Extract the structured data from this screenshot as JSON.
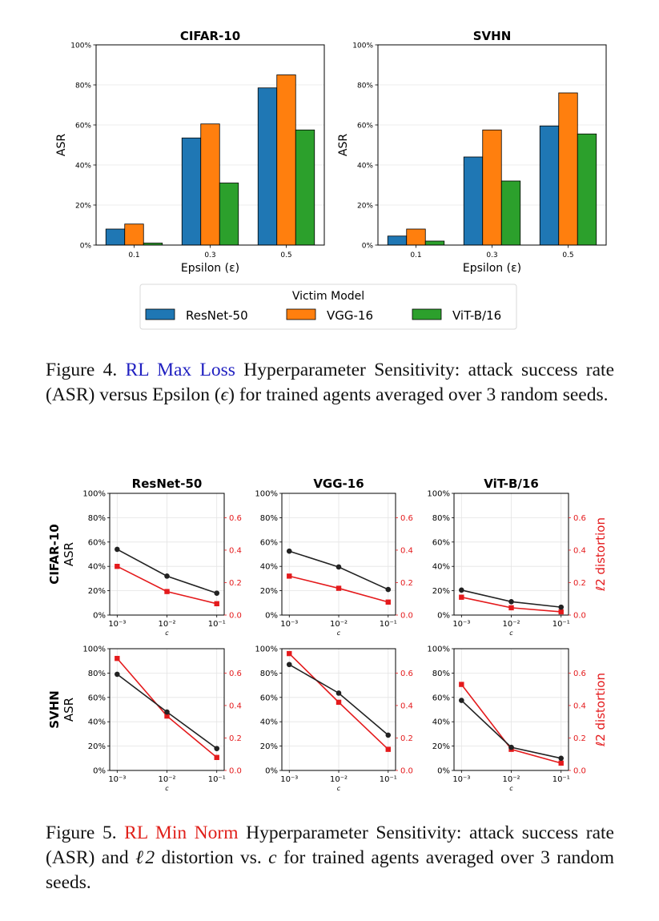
{
  "figure4": {
    "chart_data": [
      {
        "type": "bar",
        "title": "CIFAR-10",
        "xlabel": "Epsilon (ε)",
        "ylabel": "ASR",
        "categories": [
          "0.1",
          "0.3",
          "0.5"
        ],
        "ylim": [
          0,
          100
        ],
        "yticks": [
          "0%",
          "20%",
          "40%",
          "60%",
          "80%",
          "100%"
        ],
        "series": [
          {
            "name": "ResNet-50",
            "values": [
              8,
              53.5,
              78.5
            ]
          },
          {
            "name": "VGG-16",
            "values": [
              10.5,
              60.5,
              85
            ]
          },
          {
            "name": "ViT-B/16",
            "values": [
              1,
              31,
              57.5
            ]
          }
        ]
      },
      {
        "type": "bar",
        "title": "SVHN",
        "xlabel": "Epsilon (ε)",
        "ylabel": "ASR",
        "categories": [
          "0.1",
          "0.3",
          "0.5"
        ],
        "ylim": [
          0,
          100
        ],
        "yticks": [
          "0%",
          "20%",
          "40%",
          "60%",
          "80%",
          "100%"
        ],
        "series": [
          {
            "name": "ResNet-50",
            "values": [
              4.5,
              44,
              59.5
            ]
          },
          {
            "name": "VGG-16",
            "values": [
              8,
              57.5,
              76
            ]
          },
          {
            "name": "ViT-B/16",
            "values": [
              2,
              32,
              55.5
            ]
          }
        ]
      }
    ],
    "legend": {
      "title": "Victim Model",
      "items": [
        "ResNet-50",
        "VGG-16",
        "ViT-B/16"
      ]
    },
    "colors": [
      "#1f77b4",
      "#ff7f0e",
      "#2ca02c"
    ],
    "caption": {
      "label": "Figure 4.",
      "method": "RL Max Loss",
      "text_a": "Hyperparameter Sensitivity: attack suc-cess rate (ASR) versus Epsilon (",
      "epsilon": "ϵ",
      "text_b": ") for trained agents averaged over 3 random seeds."
    }
  },
  "figure5": {
    "col_titles": [
      "ResNet-50",
      "VGG-16",
      "ViT-B/16"
    ],
    "row_titles": [
      "CIFAR-10",
      "SVHN"
    ],
    "ylabel_left": "ASR",
    "ylabel_right": "ℓ2 distortion",
    "xlabel": "c",
    "xticks": [
      "10⁻³",
      "10⁻²",
      "10⁻¹"
    ],
    "asr_ticks": [
      "0%",
      "20%",
      "40%",
      "60%",
      "80%",
      "100%"
    ],
    "dist_ticks": [
      "0.0",
      "0.2",
      "0.4",
      "0.6"
    ],
    "asr_color": "#222222",
    "dist_color": "#e41a1c",
    "chart_data": [
      {
        "type": "line",
        "row": "CIFAR-10",
        "col": "ResNet-50",
        "x": [
          0.001,
          0.01,
          0.1
        ],
        "asr": [
          54,
          32,
          18
        ],
        "distortion": [
          0.3,
          0.145,
          0.07
        ]
      },
      {
        "type": "line",
        "row": "CIFAR-10",
        "col": "VGG-16",
        "x": [
          0.001,
          0.01,
          0.1
        ],
        "asr": [
          52.5,
          39.5,
          21
        ],
        "distortion": [
          0.24,
          0.165,
          0.08
        ]
      },
      {
        "type": "line",
        "row": "CIFAR-10",
        "col": "ViT-B/16",
        "x": [
          0.001,
          0.01,
          0.1
        ],
        "asr": [
          20.5,
          11,
          6.5
        ],
        "distortion": [
          0.11,
          0.045,
          0.02
        ]
      },
      {
        "type": "line",
        "row": "SVHN",
        "col": "ResNet-50",
        "x": [
          0.001,
          0.01,
          0.1
        ],
        "asr": [
          79,
          48,
          18
        ],
        "distortion": [
          0.69,
          0.335,
          0.08
        ]
      },
      {
        "type": "line",
        "row": "SVHN",
        "col": "VGG-16",
        "x": [
          0.001,
          0.01,
          0.1
        ],
        "asr": [
          87,
          63.5,
          29
        ],
        "distortion": [
          0.72,
          0.42,
          0.13
        ]
      },
      {
        "type": "line",
        "row": "SVHN",
        "col": "ViT-B/16",
        "x": [
          0.001,
          0.01,
          0.1
        ],
        "asr": [
          57.5,
          19,
          10
        ],
        "distortion": [
          0.53,
          0.13,
          0.045
        ]
      }
    ],
    "caption": {
      "label": "Figure 5.",
      "method": "RL Min Norm",
      "text_a": "Hyperparameter Sensitivity: attack suc-cess rate (ASR) and",
      "ell2": "ℓ2",
      "text_b": "distortion vs.",
      "c": "c",
      "text_c": "for trained agents averaged over 3 random seeds."
    }
  }
}
